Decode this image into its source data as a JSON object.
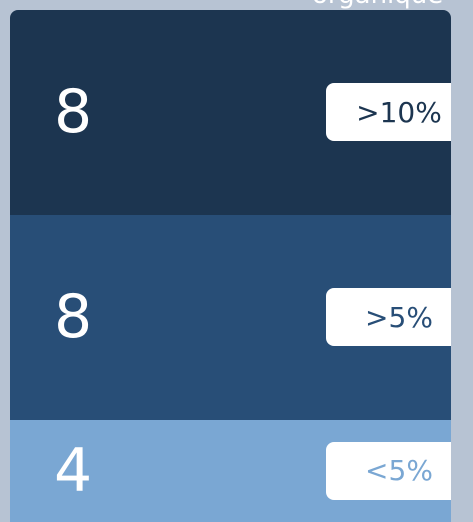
{
  "header": {
    "title": "organique"
  },
  "segments": [
    {
      "value": 8,
      "label": ">10%",
      "color": "#1c3550",
      "label_color": "#1c3550"
    },
    {
      "value": 8,
      "label": ">5%",
      "color": "#284e77",
      "label_color": "#284e77"
    },
    {
      "value": 4,
      "label": "<5%",
      "color": "#7aa7d3",
      "label_color": "#7aa7d3"
    }
  ]
}
